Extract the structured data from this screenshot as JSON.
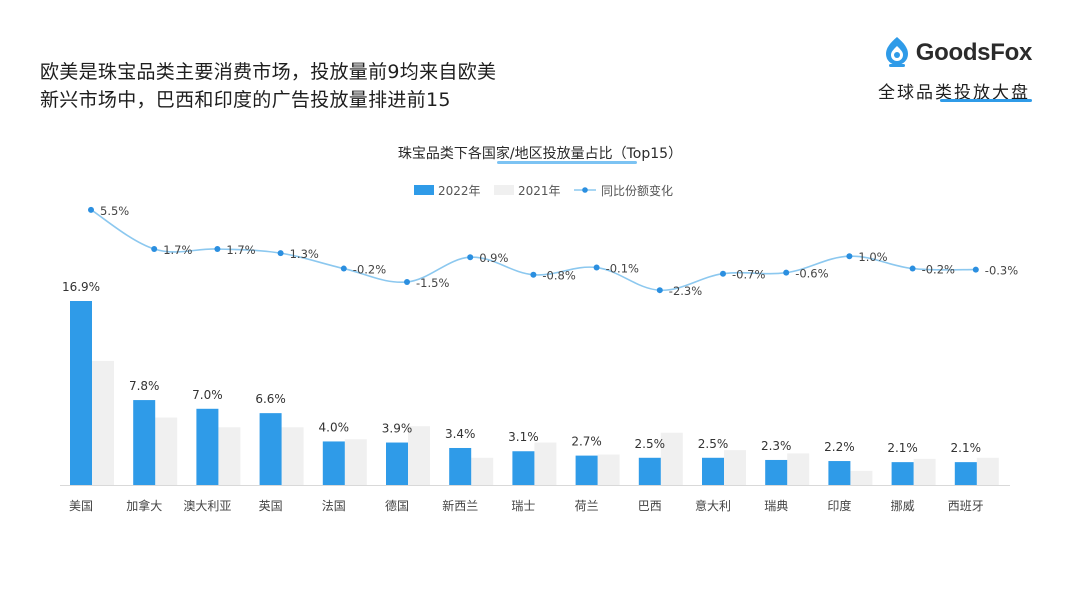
{
  "headline": {
    "line1": "欧美是珠宝品类主要消费市场，投放量前9均来自欧美",
    "line2": "新兴市场中，巴西和印度的广告投放量排进前15"
  },
  "brand": {
    "name": "GoodsFox",
    "subtitle": "全球品类投放大盘"
  },
  "colors": {
    "bar2022": "#2f9be8",
    "bar2021": "#f0f0f0",
    "line": "#8cc8ef",
    "point": "#2b8fe0"
  },
  "chart_data": {
    "type": "bar",
    "title": "珠宝品类下各国家/地区投放量占比（Top15）",
    "legend_position": "top-center",
    "categories": [
      "美国",
      "加拿大",
      "澳大利亚",
      "英国",
      "法国",
      "德国",
      "新西兰",
      "瑞士",
      "荷兰",
      "巴西",
      "意大利",
      "瑞典",
      "印度",
      "挪威",
      "西班牙"
    ],
    "series": [
      {
        "name": "2022年",
        "type": "bar",
        "values": [
          16.9,
          7.8,
          7.0,
          6.6,
          4.0,
          3.9,
          3.4,
          3.1,
          2.7,
          2.5,
          2.5,
          2.3,
          2.2,
          2.1,
          2.1
        ],
        "labels": [
          "16.9%",
          "7.8%",
          "7.0%",
          "6.6%",
          "4.0%",
          "3.9%",
          "3.4%",
          "3.1%",
          "2.7%",
          "2.5%",
          "2.5%",
          "2.3%",
          "2.2%",
          "2.1%",
          "2.1%"
        ]
      },
      {
        "name": "2021年",
        "type": "bar",
        "values": [
          11.4,
          6.2,
          5.3,
          5.3,
          4.2,
          5.4,
          2.5,
          3.9,
          2.8,
          4.8,
          3.2,
          2.9,
          1.3,
          2.4,
          2.5
        ]
      },
      {
        "name": "同比份额变化",
        "type": "line",
        "values": [
          5.5,
          1.7,
          1.7,
          1.3,
          -0.2,
          -1.5,
          0.9,
          -0.8,
          -0.1,
          -2.3,
          -0.7,
          -0.6,
          1.0,
          -0.2,
          -0.3
        ],
        "labels": [
          "5.5%",
          "1.7%",
          "1.7%",
          "1.3%",
          "-0.2%",
          "-1.5%",
          "0.9%",
          "-0.8%",
          "-0.1%",
          "-2.3%",
          "-0.7%",
          "-0.6%",
          "1.0%",
          "-0.2%",
          "-0.3%"
        ]
      }
    ],
    "grid": false
  }
}
